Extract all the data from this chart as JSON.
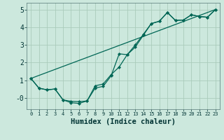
{
  "xlabel": "Humidex (Indice chaleur)",
  "bg_color": "#cce8dd",
  "grid_color": "#aaccbb",
  "line_color": "#006655",
  "marker_color": "#006655",
  "xlim": [
    -0.5,
    23.5
  ],
  "ylim": [
    -0.65,
    5.4
  ],
  "xticks": [
    0,
    1,
    2,
    3,
    4,
    5,
    6,
    7,
    8,
    9,
    10,
    11,
    12,
    13,
    14,
    15,
    16,
    17,
    18,
    19,
    20,
    21,
    22,
    23
  ],
  "yticks": [
    0,
    1,
    2,
    3,
    4,
    5
  ],
  "ytick_labels": [
    "-0",
    "1",
    "2",
    "3",
    "4",
    "5"
  ],
  "line1_x": [
    0,
    1,
    2,
    3,
    4,
    5,
    6,
    7,
    8,
    9,
    10,
    11,
    12,
    13,
    14,
    15,
    16,
    17,
    18,
    19,
    20,
    21,
    22,
    23
  ],
  "line1_y": [
    1.1,
    0.55,
    0.45,
    0.5,
    -0.12,
    -0.2,
    -0.22,
    -0.18,
    0.55,
    0.65,
    1.25,
    2.5,
    2.45,
    3.0,
    3.6,
    4.22,
    4.35,
    4.85,
    4.4,
    4.42,
    4.72,
    4.62,
    4.58,
    5.02
  ],
  "line2_x": [
    0,
    1,
    2,
    3,
    4,
    5,
    6,
    7,
    8,
    9,
    10,
    11,
    12,
    13,
    14,
    15,
    16,
    17,
    18,
    19,
    20,
    21,
    22,
    23
  ],
  "line2_y": [
    1.1,
    0.55,
    0.45,
    0.5,
    -0.12,
    -0.28,
    -0.32,
    -0.18,
    0.68,
    0.78,
    1.32,
    1.75,
    2.45,
    2.88,
    3.55,
    4.22,
    4.35,
    4.85,
    4.4,
    4.42,
    4.72,
    4.62,
    4.58,
    5.02
  ],
  "line3_x": [
    0,
    23
  ],
  "line3_y": [
    1.1,
    5.02
  ]
}
